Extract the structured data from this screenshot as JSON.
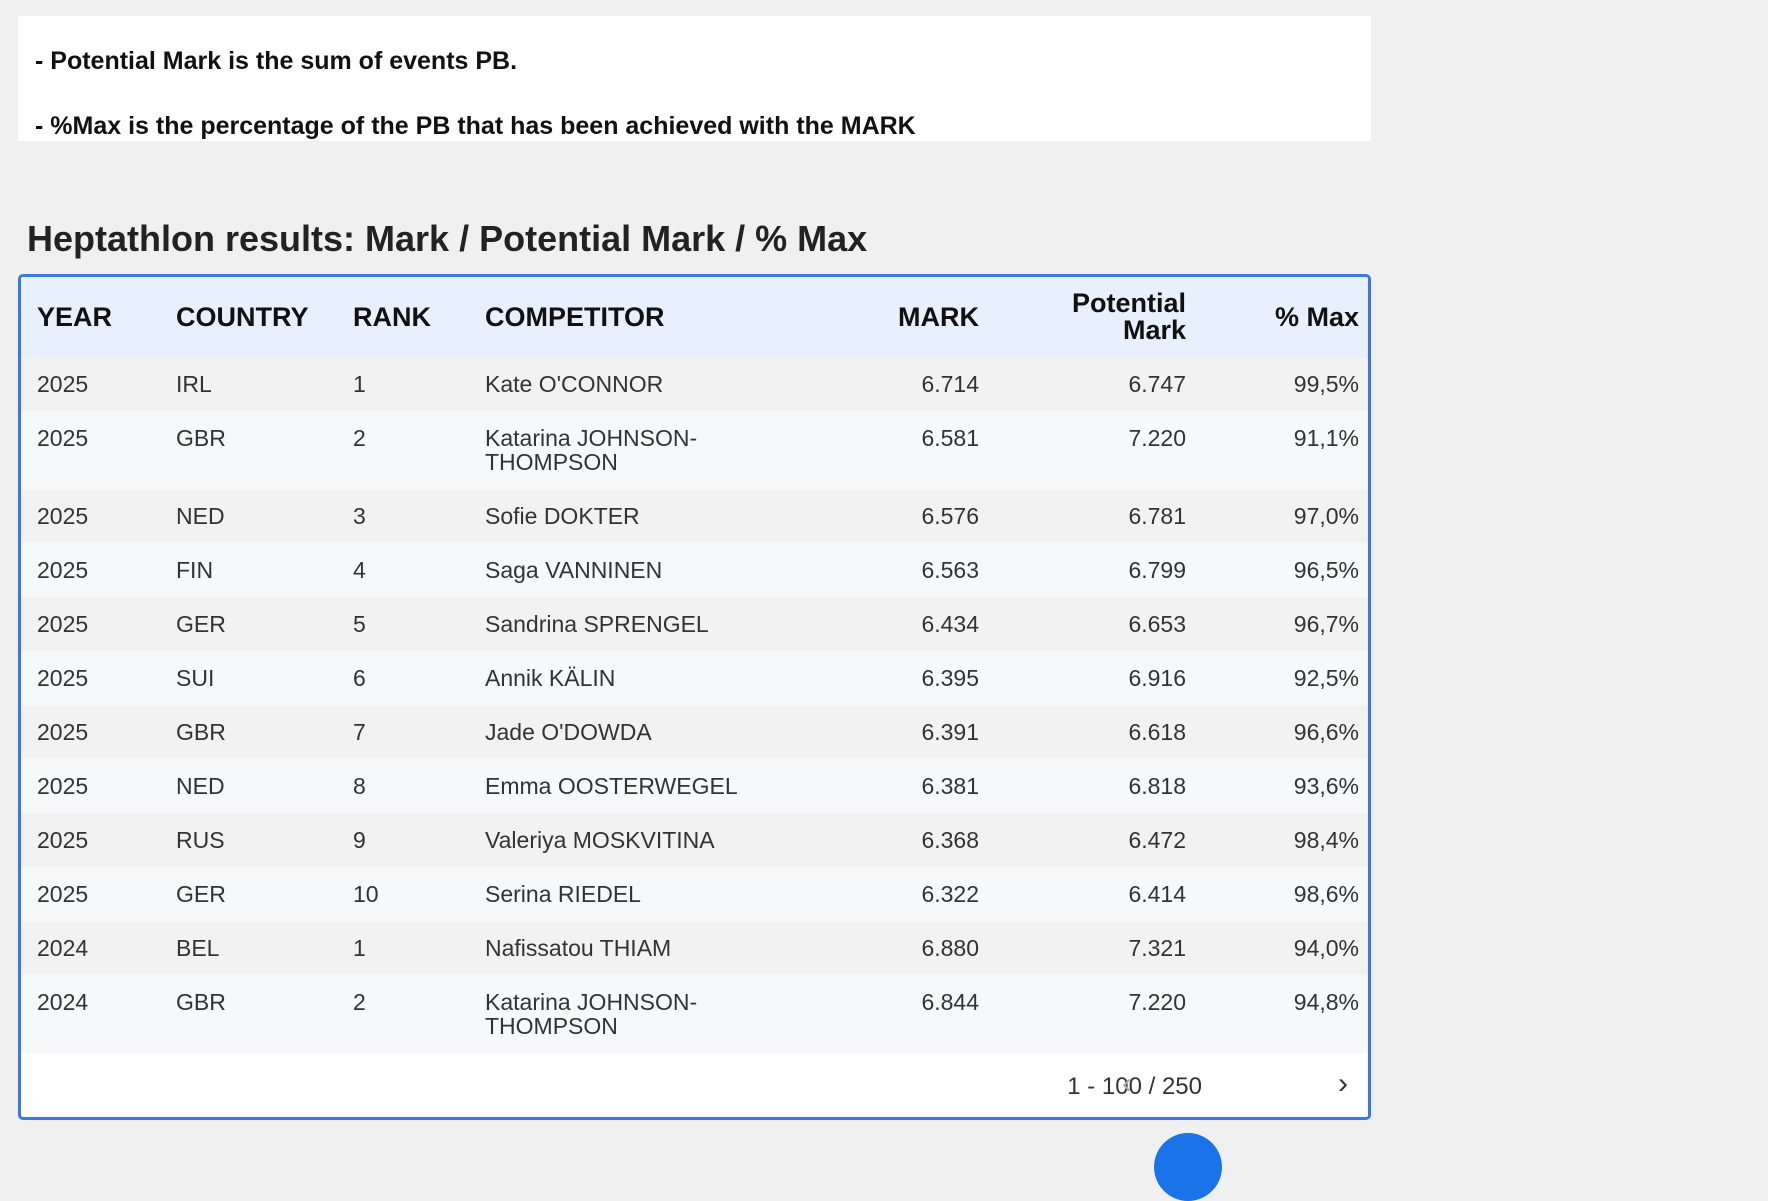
{
  "notes": [
    "- Potential Mark  is the sum of events PB.",
    "- %Max is the percentage of the PB that has been achieved with the MARK"
  ],
  "table": {
    "title": "Heptathlon results: Mark / Potential Mark / % Max",
    "headers": [
      "YEAR",
      "COUNTRY",
      "RANK",
      "COMPETITOR",
      "MARK",
      "Potential Mark",
      "% Max"
    ],
    "rows": [
      [
        "2025",
        "IRL",
        "1",
        "Kate O'CONNOR",
        "6.714",
        "6.747",
        "99,5%"
      ],
      [
        "2025",
        "GBR",
        "2",
        "Katarina JOHNSON-THOMPSON",
        "6.581",
        "7.220",
        "91,1%"
      ],
      [
        "2025",
        "NED",
        "3",
        "Sofie DOKTER",
        "6.576",
        "6.781",
        "97,0%"
      ],
      [
        "2025",
        "FIN",
        "4",
        "Saga VANNINEN",
        "6.563",
        "6.799",
        "96,5%"
      ],
      [
        "2025",
        "GER",
        "5",
        "Sandrina SPRENGEL",
        "6.434",
        "6.653",
        "96,7%"
      ],
      [
        "2025",
        "SUI",
        "6",
        "Annik KÄLIN",
        "6.395",
        "6.916",
        "92,5%"
      ],
      [
        "2025",
        "GBR",
        "7",
        "Jade O'DOWDA",
        "6.391",
        "6.618",
        "96,6%"
      ],
      [
        "2025",
        "NED",
        "8",
        "Emma OOSTERWEGEL",
        "6.381",
        "6.818",
        "93,6%"
      ],
      [
        "2025",
        "RUS",
        "9",
        "Valeriya MOSKVITINA",
        "6.368",
        "6.472",
        "98,4%"
      ],
      [
        "2025",
        "GER",
        "10",
        "Serina RIEDEL",
        "6.322",
        "6.414",
        "98,6%"
      ],
      [
        "2024",
        "BEL",
        "1",
        "Nafissatou THIAM",
        "6.880",
        "7.321",
        "94,0%"
      ],
      [
        "2024",
        "GBR",
        "2",
        "Katarina JOHNSON-THOMPSON",
        "6.844",
        "7.220",
        "94,8%"
      ]
    ],
    "pagination": "1 - 100 / 250"
  }
}
